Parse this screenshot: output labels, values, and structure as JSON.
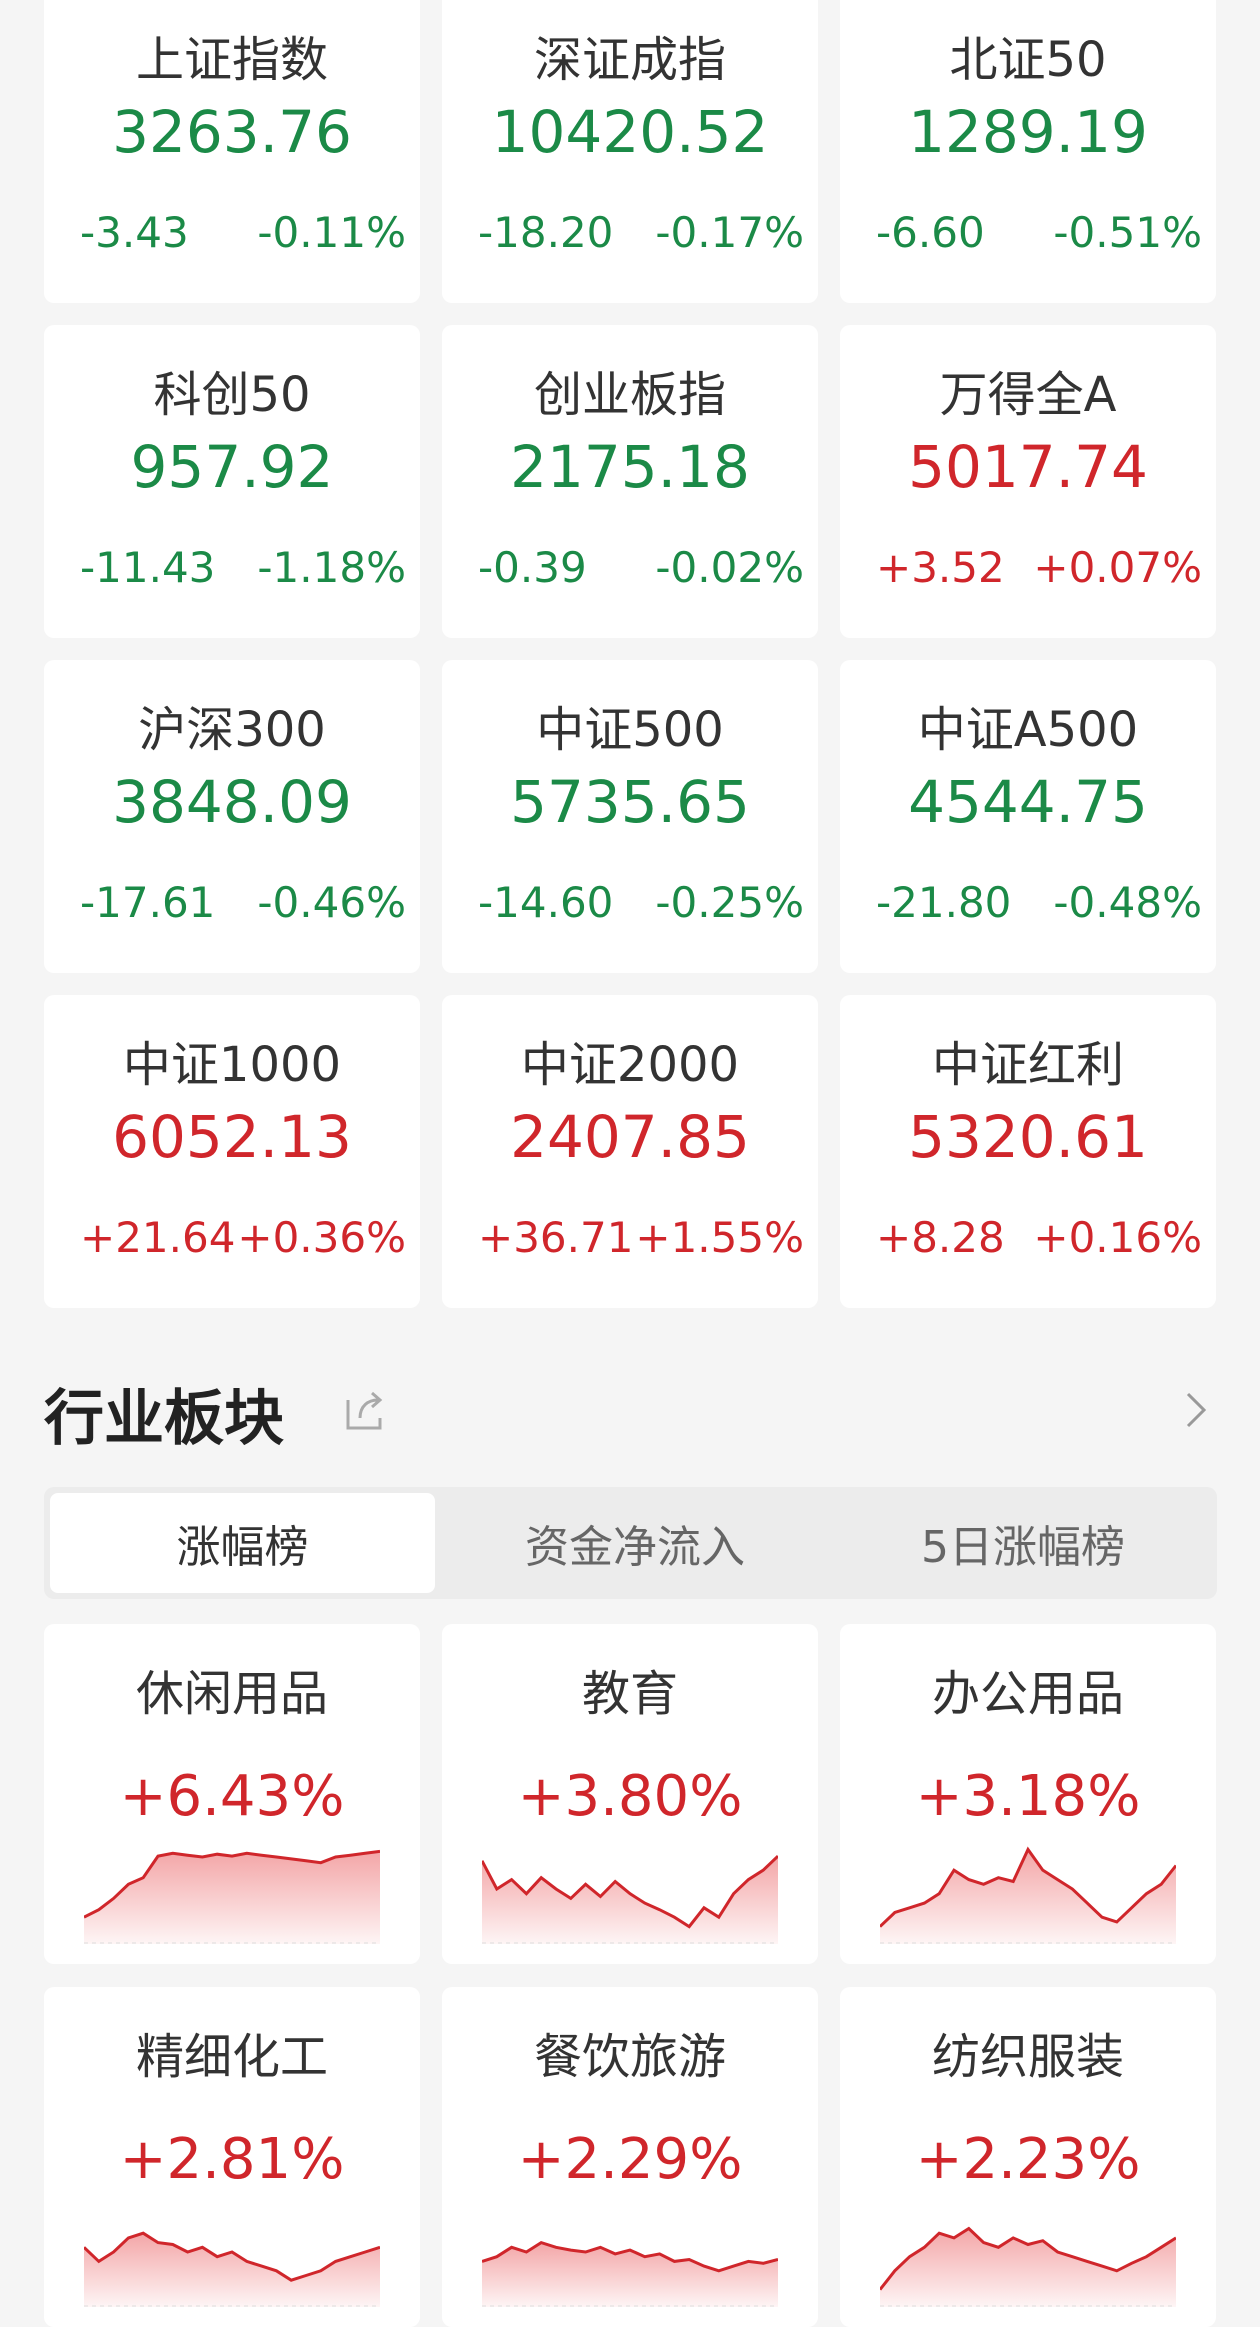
{
  "colors": {
    "up": "#d0262b",
    "down": "#1b8a47",
    "background": "#f5f5f5"
  },
  "indices": [
    {
      "name": "上证指数",
      "value": "3263.76",
      "change": "-3.43",
      "pct": "-0.11%",
      "dir": "down"
    },
    {
      "name": "深证成指",
      "value": "10420.52",
      "change": "-18.20",
      "pct": "-0.17%",
      "dir": "down"
    },
    {
      "name": "北证50",
      "value": "1289.19",
      "change": "-6.60",
      "pct": "-0.51%",
      "dir": "down"
    },
    {
      "name": "科创50",
      "value": "957.92",
      "change": "-11.43",
      "pct": "-1.18%",
      "dir": "down"
    },
    {
      "name": "创业板指",
      "value": "2175.18",
      "change": "-0.39",
      "pct": "-0.02%",
      "dir": "down"
    },
    {
      "name": "万得全A",
      "value": "5017.74",
      "change": "+3.52",
      "pct": "+0.07%",
      "dir": "up"
    },
    {
      "name": "沪深300",
      "value": "3848.09",
      "change": "-17.61",
      "pct": "-0.46%",
      "dir": "down"
    },
    {
      "name": "中证500",
      "value": "5735.65",
      "change": "-14.60",
      "pct": "-0.25%",
      "dir": "down"
    },
    {
      "name": "中证A500",
      "value": "4544.75",
      "change": "-21.80",
      "pct": "-0.48%",
      "dir": "down"
    },
    {
      "name": "中证1000",
      "value": "6052.13",
      "change": "+21.64",
      "pct": "+0.36%",
      "dir": "up"
    },
    {
      "name": "中证2000",
      "value": "2407.85",
      "change": "+36.71",
      "pct": "+1.55%",
      "dir": "up"
    },
    {
      "name": "中证红利",
      "value": "5320.61",
      "change": "+8.28",
      "pct": "+0.16%",
      "dir": "up"
    }
  ],
  "section": {
    "title": "行业板块",
    "share_icon": "share-icon",
    "more_icon": "chevron-right-icon"
  },
  "tabs": [
    {
      "label": "涨幅榜",
      "active": true
    },
    {
      "label": "资金净流入",
      "active": false
    },
    {
      "label": "5日涨幅榜",
      "active": false
    }
  ],
  "sectors": [
    {
      "name": "休闲用品",
      "pct": "+6.43%",
      "trend": [
        20,
        28,
        40,
        55,
        62,
        85,
        88,
        86,
        84,
        87,
        85,
        88,
        86,
        84,
        82,
        80,
        78,
        84,
        86,
        88,
        90
      ]
    },
    {
      "name": "教育",
      "pct": "+3.80%",
      "trend": [
        80,
        50,
        60,
        45,
        62,
        50,
        40,
        55,
        42,
        58,
        45,
        35,
        28,
        20,
        10,
        30,
        20,
        45,
        60,
        70,
        85
      ]
    },
    {
      "name": "办公用品",
      "pct": "+3.18%",
      "trend": [
        10,
        25,
        30,
        35,
        45,
        70,
        60,
        55,
        62,
        58,
        92,
        70,
        60,
        50,
        35,
        20,
        15,
        30,
        45,
        55,
        75
      ]
    },
    {
      "name": "精细化工",
      "pct": "+2.81%",
      "trend": [
        55,
        40,
        50,
        65,
        70,
        60,
        58,
        50,
        55,
        45,
        50,
        40,
        35,
        30,
        20,
        25,
        30,
        40,
        45,
        50,
        55
      ]
    },
    {
      "name": "餐饮旅游",
      "pct": "+2.29%",
      "trend": [
        40,
        45,
        55,
        50,
        60,
        55,
        52,
        50,
        55,
        48,
        52,
        45,
        48,
        40,
        42,
        35,
        30,
        35,
        40,
        38,
        42
      ]
    },
    {
      "name": "纺织服装",
      "pct": "+2.23%",
      "trend": [
        10,
        30,
        45,
        55,
        70,
        65,
        75,
        60,
        55,
        65,
        58,
        62,
        50,
        45,
        40,
        35,
        30,
        38,
        45,
        55,
        65
      ]
    }
  ]
}
